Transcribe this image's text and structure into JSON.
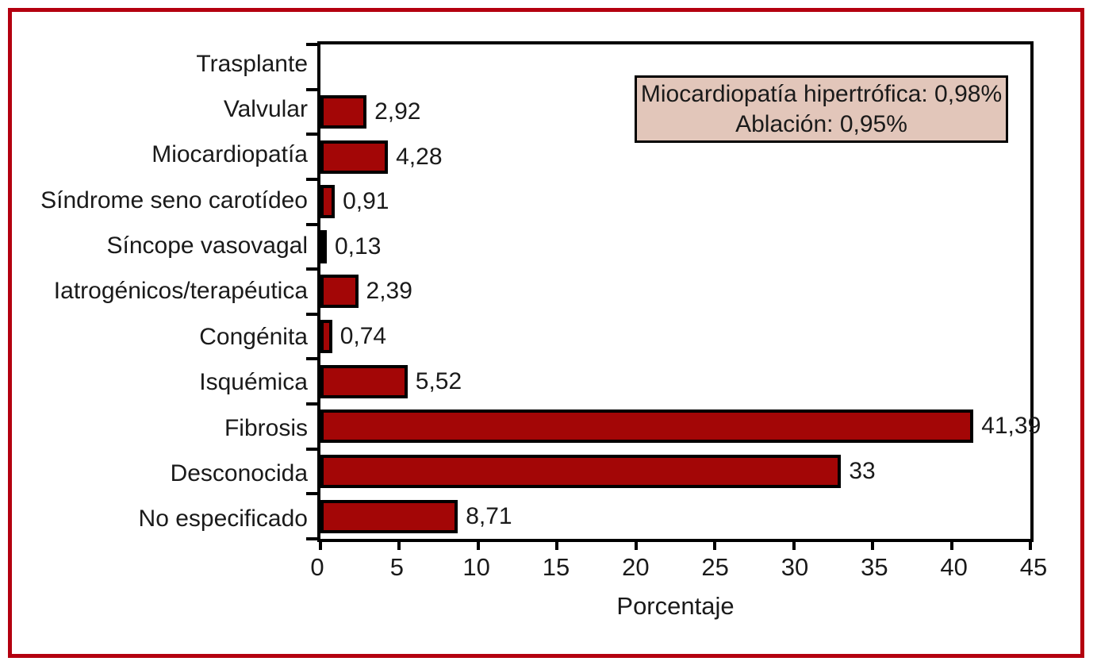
{
  "figure": {
    "frame_color": "#b4000f",
    "background": "#ffffff"
  },
  "chart_data": {
    "type": "bar",
    "orientation": "horizontal",
    "title": "",
    "xlabel": "Porcentaje",
    "ylabel": "",
    "xlim": [
      0,
      45
    ],
    "x_ticks": [
      0,
      5,
      10,
      15,
      20,
      25,
      30,
      35,
      40,
      45
    ],
    "x_tick_labels": [
      "0",
      "5",
      "10",
      "15",
      "20",
      "25",
      "30",
      "35",
      "40",
      "45"
    ],
    "grid": false,
    "legend": "none",
    "categories": [
      "Trasplante",
      "Valvular",
      "Miocardiopatía",
      "Síndrome seno carotídeo",
      "Síncope vasovagal",
      "Iatrogénicos/terapéutica",
      "Congénita",
      "Isquémica",
      "Fibrosis",
      "Desconocida",
      "No especificado"
    ],
    "values": [
      null,
      2.92,
      4.28,
      0.91,
      0.13,
      2.39,
      0.74,
      5.52,
      41.39,
      33,
      8.71
    ],
    "value_labels": [
      "",
      "2,92",
      "4,28",
      "0,91",
      "0,13",
      "2,39",
      "0,74",
      "5,52",
      "41,39",
      "33",
      "8,71"
    ],
    "bar_fill": "#a30606",
    "bar_border": "#000000",
    "annotation": {
      "lines": [
        "Miocardiopatía hipertrófica: 0,98%",
        "Ablación: 0,95%"
      ],
      "background": "#e2c6ba",
      "border": "#000000"
    }
  }
}
